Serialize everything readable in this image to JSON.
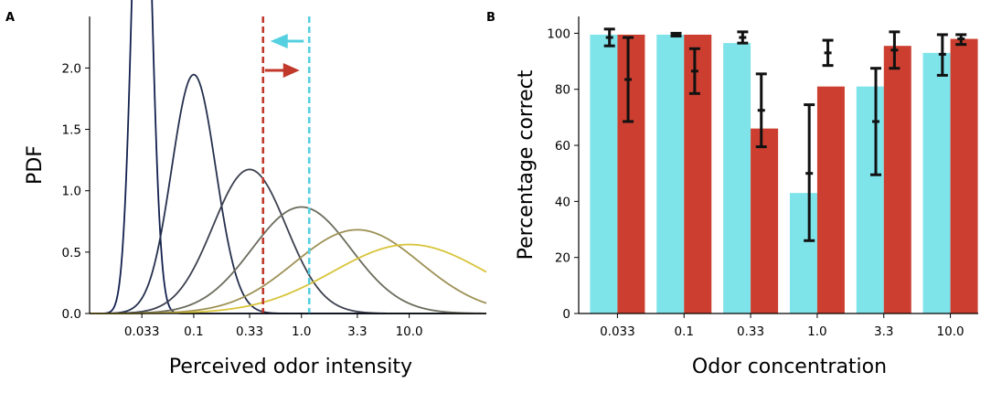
{
  "chart_data": [
    {
      "panel": "A",
      "type": "line",
      "title": "",
      "xlabel": "Perceived odor intensity",
      "ylabel": "PDF",
      "xscale": "log",
      "xticks": [
        0.033,
        0.1,
        0.33,
        1.0,
        3.3,
        10.0
      ],
      "xtick_labels": [
        "0.033",
        "0.1",
        "0.33",
        "1.0",
        "3.3",
        "10.0"
      ],
      "yticks": [
        0.0,
        0.5,
        1.0,
        1.5,
        2.0
      ],
      "ytick_labels": [
        "0.0",
        "0.5",
        "1.0",
        "1.5",
        "2.0"
      ],
      "ylim": [
        0,
        2.42
      ],
      "xlim": [
        0.0108,
        52
      ],
      "series": [
        {
          "name": "0.033",
          "mu": 0.033,
          "sigma_log10": 0.086,
          "color": "#12204e"
        },
        {
          "name": "0.1",
          "mu": 0.1,
          "sigma_log10": 0.205,
          "color": "#25304d"
        },
        {
          "name": "0.33",
          "mu": 0.33,
          "sigma_log10": 0.34,
          "color": "#3d4150"
        },
        {
          "name": "1.0",
          "mu": 1.0,
          "sigma_log10": 0.46,
          "color": "#6b6b5c"
        },
        {
          "name": "3.3",
          "mu": 3.3,
          "sigma_log10": 0.585,
          "color": "#9e9156"
        },
        {
          "name": "10.0",
          "mu": 10.0,
          "sigma_log10": 0.71,
          "color": "#d8c43a"
        }
      ],
      "thresholds": [
        {
          "name": "red-threshold",
          "x": 0.44,
          "color": "#c0392b",
          "arrow": "right"
        },
        {
          "name": "cyan-threshold",
          "x": 1.18,
          "color": "#55d0e0",
          "arrow": "left"
        }
      ]
    },
    {
      "panel": "B",
      "type": "bar",
      "title": "",
      "xlabel": "Odor concentration",
      "ylabel": "Percentage correct",
      "categories": [
        "0.033",
        "0.1",
        "0.33",
        "1.0",
        "3.3",
        "10.0"
      ],
      "ylim": [
        0,
        106
      ],
      "yticks": [
        0,
        20,
        40,
        60,
        80,
        100
      ],
      "ytick_labels": [
        "0",
        "20",
        "40",
        "60",
        "80",
        "100"
      ],
      "series": [
        {
          "name": "cyan",
          "color": "#7fe3ea",
          "values": [
            99.5,
            99.5,
            96.5,
            43,
            81,
            93
          ]
        },
        {
          "name": "red",
          "color": "#cc3f30",
          "values": [
            99.5,
            99.5,
            66,
            81,
            95.5,
            98
          ]
        }
      ],
      "error_bars": [
        {
          "category": "0.033",
          "x_offset": -0.12,
          "mean": 98.5,
          "low": 95.5,
          "high": 101.5
        },
        {
          "category": "0.033",
          "x_offset": 0.16,
          "mean": 83.5,
          "low": 68.5,
          "high": 98.5
        },
        {
          "category": "0.1",
          "x_offset": -0.12,
          "mean": 99.5,
          "low": 99,
          "high": 100
        },
        {
          "category": "0.1",
          "x_offset": 0.16,
          "mean": 86.5,
          "low": 78.5,
          "high": 94.5
        },
        {
          "category": "0.33",
          "x_offset": -0.12,
          "mean": 98.5,
          "low": 96.5,
          "high": 100.5
        },
        {
          "category": "0.33",
          "x_offset": 0.16,
          "mean": 72.5,
          "low": 59.5,
          "high": 85.5
        },
        {
          "category": "1.0",
          "x_offset": -0.12,
          "mean": 50,
          "low": 26,
          "high": 74.5
        },
        {
          "category": "1.0",
          "x_offset": 0.16,
          "mean": 93,
          "low": 88.5,
          "high": 97.5
        },
        {
          "category": "3.3",
          "x_offset": -0.12,
          "mean": 68.5,
          "low": 49.5,
          "high": 87.5
        },
        {
          "category": "3.3",
          "x_offset": 0.16,
          "mean": 94,
          "low": 87.5,
          "high": 100.5
        },
        {
          "category": "10.0",
          "x_offset": -0.12,
          "mean": 92.5,
          "low": 85,
          "high": 99.5
        },
        {
          "category": "10.0",
          "x_offset": 0.16,
          "mean": 98,
          "low": 96,
          "high": 99.5
        }
      ]
    }
  ]
}
